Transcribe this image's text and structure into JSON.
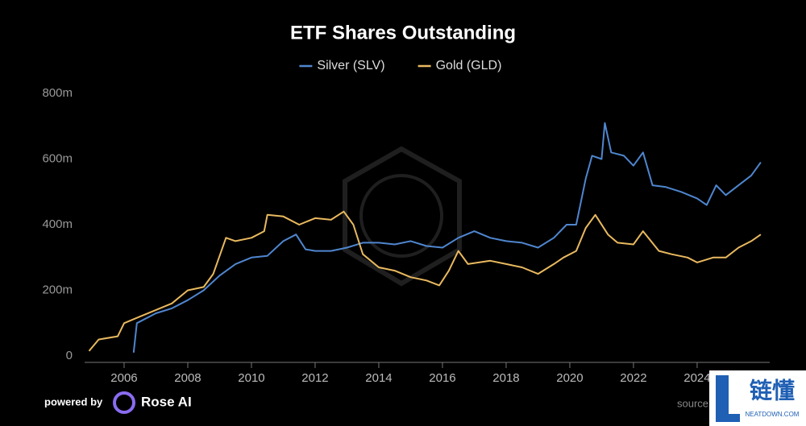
{
  "chart_data": {
    "type": "line",
    "title": "ETF Shares Outstanding",
    "xlim": [
      2004.76,
      2026.28
    ],
    "xticks": [
      2006,
      2008,
      2010,
      2012,
      2014,
      2016,
      2018,
      2020,
      2022,
      2024
    ],
    "ylim": [
      0,
      800
    ],
    "yticks": [
      0,
      {
        "value": 200,
        "label": "200m"
      },
      {
        "value": 400,
        "label": "400m"
      },
      {
        "value": 600,
        "label": "600m"
      },
      {
        "value": 800,
        "label": "800m"
      }
    ],
    "series": [
      {
        "name": "Silver (SLV)",
        "color": "#4f86cf",
        "x": [
          2006.3,
          2006.4,
          2006.6,
          2007.0,
          2007.5,
          2008.0,
          2008.5,
          2009.0,
          2009.5,
          2010.0,
          2010.5,
          2011.0,
          2011.4,
          2011.7,
          2012.0,
          2012.5,
          2013.0,
          2013.5,
          2014.0,
          2014.5,
          2015.0,
          2015.5,
          2016.0,
          2016.5,
          2017.0,
          2017.5,
          2018.0,
          2018.5,
          2019.0,
          2019.5,
          2019.9,
          2020.2,
          2020.5,
          2020.7,
          2021.0,
          2021.1,
          2021.3,
          2021.7,
          2022.0,
          2022.3,
          2022.6,
          2023.0,
          2023.5,
          2024.0,
          2024.3,
          2024.6,
          2024.9,
          2025.3,
          2025.7,
          2026.0
        ],
        "values": [
          10,
          100,
          110,
          130,
          145,
          170,
          200,
          245,
          280,
          300,
          305,
          350,
          370,
          325,
          320,
          320,
          330,
          345,
          345,
          340,
          350,
          335,
          330,
          360,
          380,
          360,
          350,
          345,
          330,
          360,
          400,
          400,
          540,
          610,
          600,
          710,
          620,
          610,
          580,
          620,
          520,
          515,
          500,
          480,
          460,
          520,
          490,
          520,
          550,
          590
        ]
      },
      {
        "name": "Gold (GLD)",
        "color": "#e9b95f",
        "x": [
          2004.9,
          2005.2,
          2005.8,
          2006.0,
          2006.5,
          2007.0,
          2007.5,
          2008.0,
          2008.5,
          2008.8,
          2009.2,
          2009.5,
          2010.0,
          2010.4,
          2010.5,
          2011.0,
          2011.5,
          2012.0,
          2012.5,
          2012.9,
          2013.2,
          2013.5,
          2014.0,
          2014.5,
          2015.0,
          2015.5,
          2015.9,
          2016.2,
          2016.5,
          2016.8,
          2017.5,
          2018.0,
          2018.5,
          2019.0,
          2019.5,
          2019.8,
          2020.2,
          2020.5,
          2020.8,
          2021.2,
          2021.5,
          2022.0,
          2022.3,
          2022.8,
          2023.2,
          2023.7,
          2024.0,
          2024.5,
          2024.9,
          2025.3,
          2025.7,
          2026.0
        ],
        "values": [
          15,
          50,
          60,
          100,
          120,
          140,
          160,
          200,
          210,
          250,
          360,
          350,
          360,
          380,
          430,
          425,
          400,
          420,
          415,
          440,
          400,
          310,
          270,
          260,
          240,
          230,
          215,
          260,
          320,
          280,
          290,
          280,
          270,
          250,
          280,
          300,
          320,
          390,
          430,
          370,
          345,
          340,
          380,
          320,
          310,
          300,
          285,
          300,
          300,
          330,
          350,
          370
        ]
      }
    ],
    "legend": "top",
    "footer": {
      "powered": "powered by",
      "brand": "Rose AI",
      "source": "source"
    },
    "watermark": {
      "name": "链懂",
      "site": "NEATDOWN.COM"
    }
  }
}
